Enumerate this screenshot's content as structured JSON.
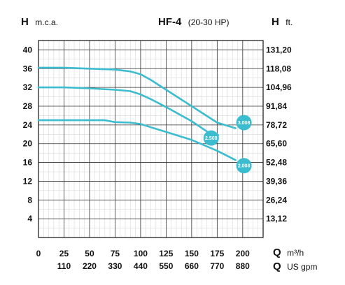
{
  "chart_data": {
    "type": "line",
    "title": "HF-4",
    "subtitle": "(20-30 HP)",
    "y_left": {
      "symbol": "H",
      "unit": "m.c.a.",
      "range": [
        0,
        42
      ],
      "ticks": [
        "4",
        "8",
        "12",
        "16",
        "20",
        "24",
        "28",
        "32",
        "36",
        "40"
      ]
    },
    "y_right": {
      "symbol": "H",
      "unit": "ft.",
      "ticks": [
        "13,12",
        "26,24",
        "39,36",
        "52,48",
        "65,60",
        "78,72",
        "91,84",
        "104,96",
        "118,08",
        "131,20"
      ]
    },
    "x_primary": {
      "symbol": "Q",
      "unit": "m³/h",
      "range": [
        0,
        220
      ],
      "ticks": [
        "0",
        "25",
        "50",
        "75",
        "100",
        "125",
        "150",
        "175",
        "200"
      ]
    },
    "x_secondary": {
      "symbol": "Q",
      "unit": "US gpm",
      "ticks": [
        "110",
        "220",
        "330",
        "440",
        "550",
        "660",
        "770",
        "880"
      ]
    },
    "grid": true,
    "line_color": "#3cbccf",
    "series": [
      {
        "name": "3.008",
        "x": [
          0,
          25,
          50,
          75,
          90,
          100,
          110,
          125,
          150,
          175,
          193
        ],
        "y": [
          36.2,
          36.2,
          36.0,
          35.8,
          35.4,
          34.8,
          33.6,
          31.5,
          28.0,
          24.5,
          23.3
        ]
      },
      {
        "name": "2.508",
        "x": [
          0,
          25,
          50,
          75,
          90,
          100,
          110,
          125,
          150,
          165,
          176
        ],
        "y": [
          32.0,
          32.0,
          31.8,
          31.5,
          31.2,
          30.5,
          29.5,
          27.8,
          24.8,
          22.6,
          21.8
        ]
      },
      {
        "name": "2.008",
        "x": [
          0,
          25,
          50,
          65,
          75,
          90,
          100,
          110,
          125,
          150,
          175,
          193
        ],
        "y": [
          25.0,
          25.0,
          25.0,
          25.0,
          24.6,
          24.5,
          24.2,
          23.5,
          22.5,
          20.8,
          18.5,
          16.5
        ]
      }
    ]
  }
}
